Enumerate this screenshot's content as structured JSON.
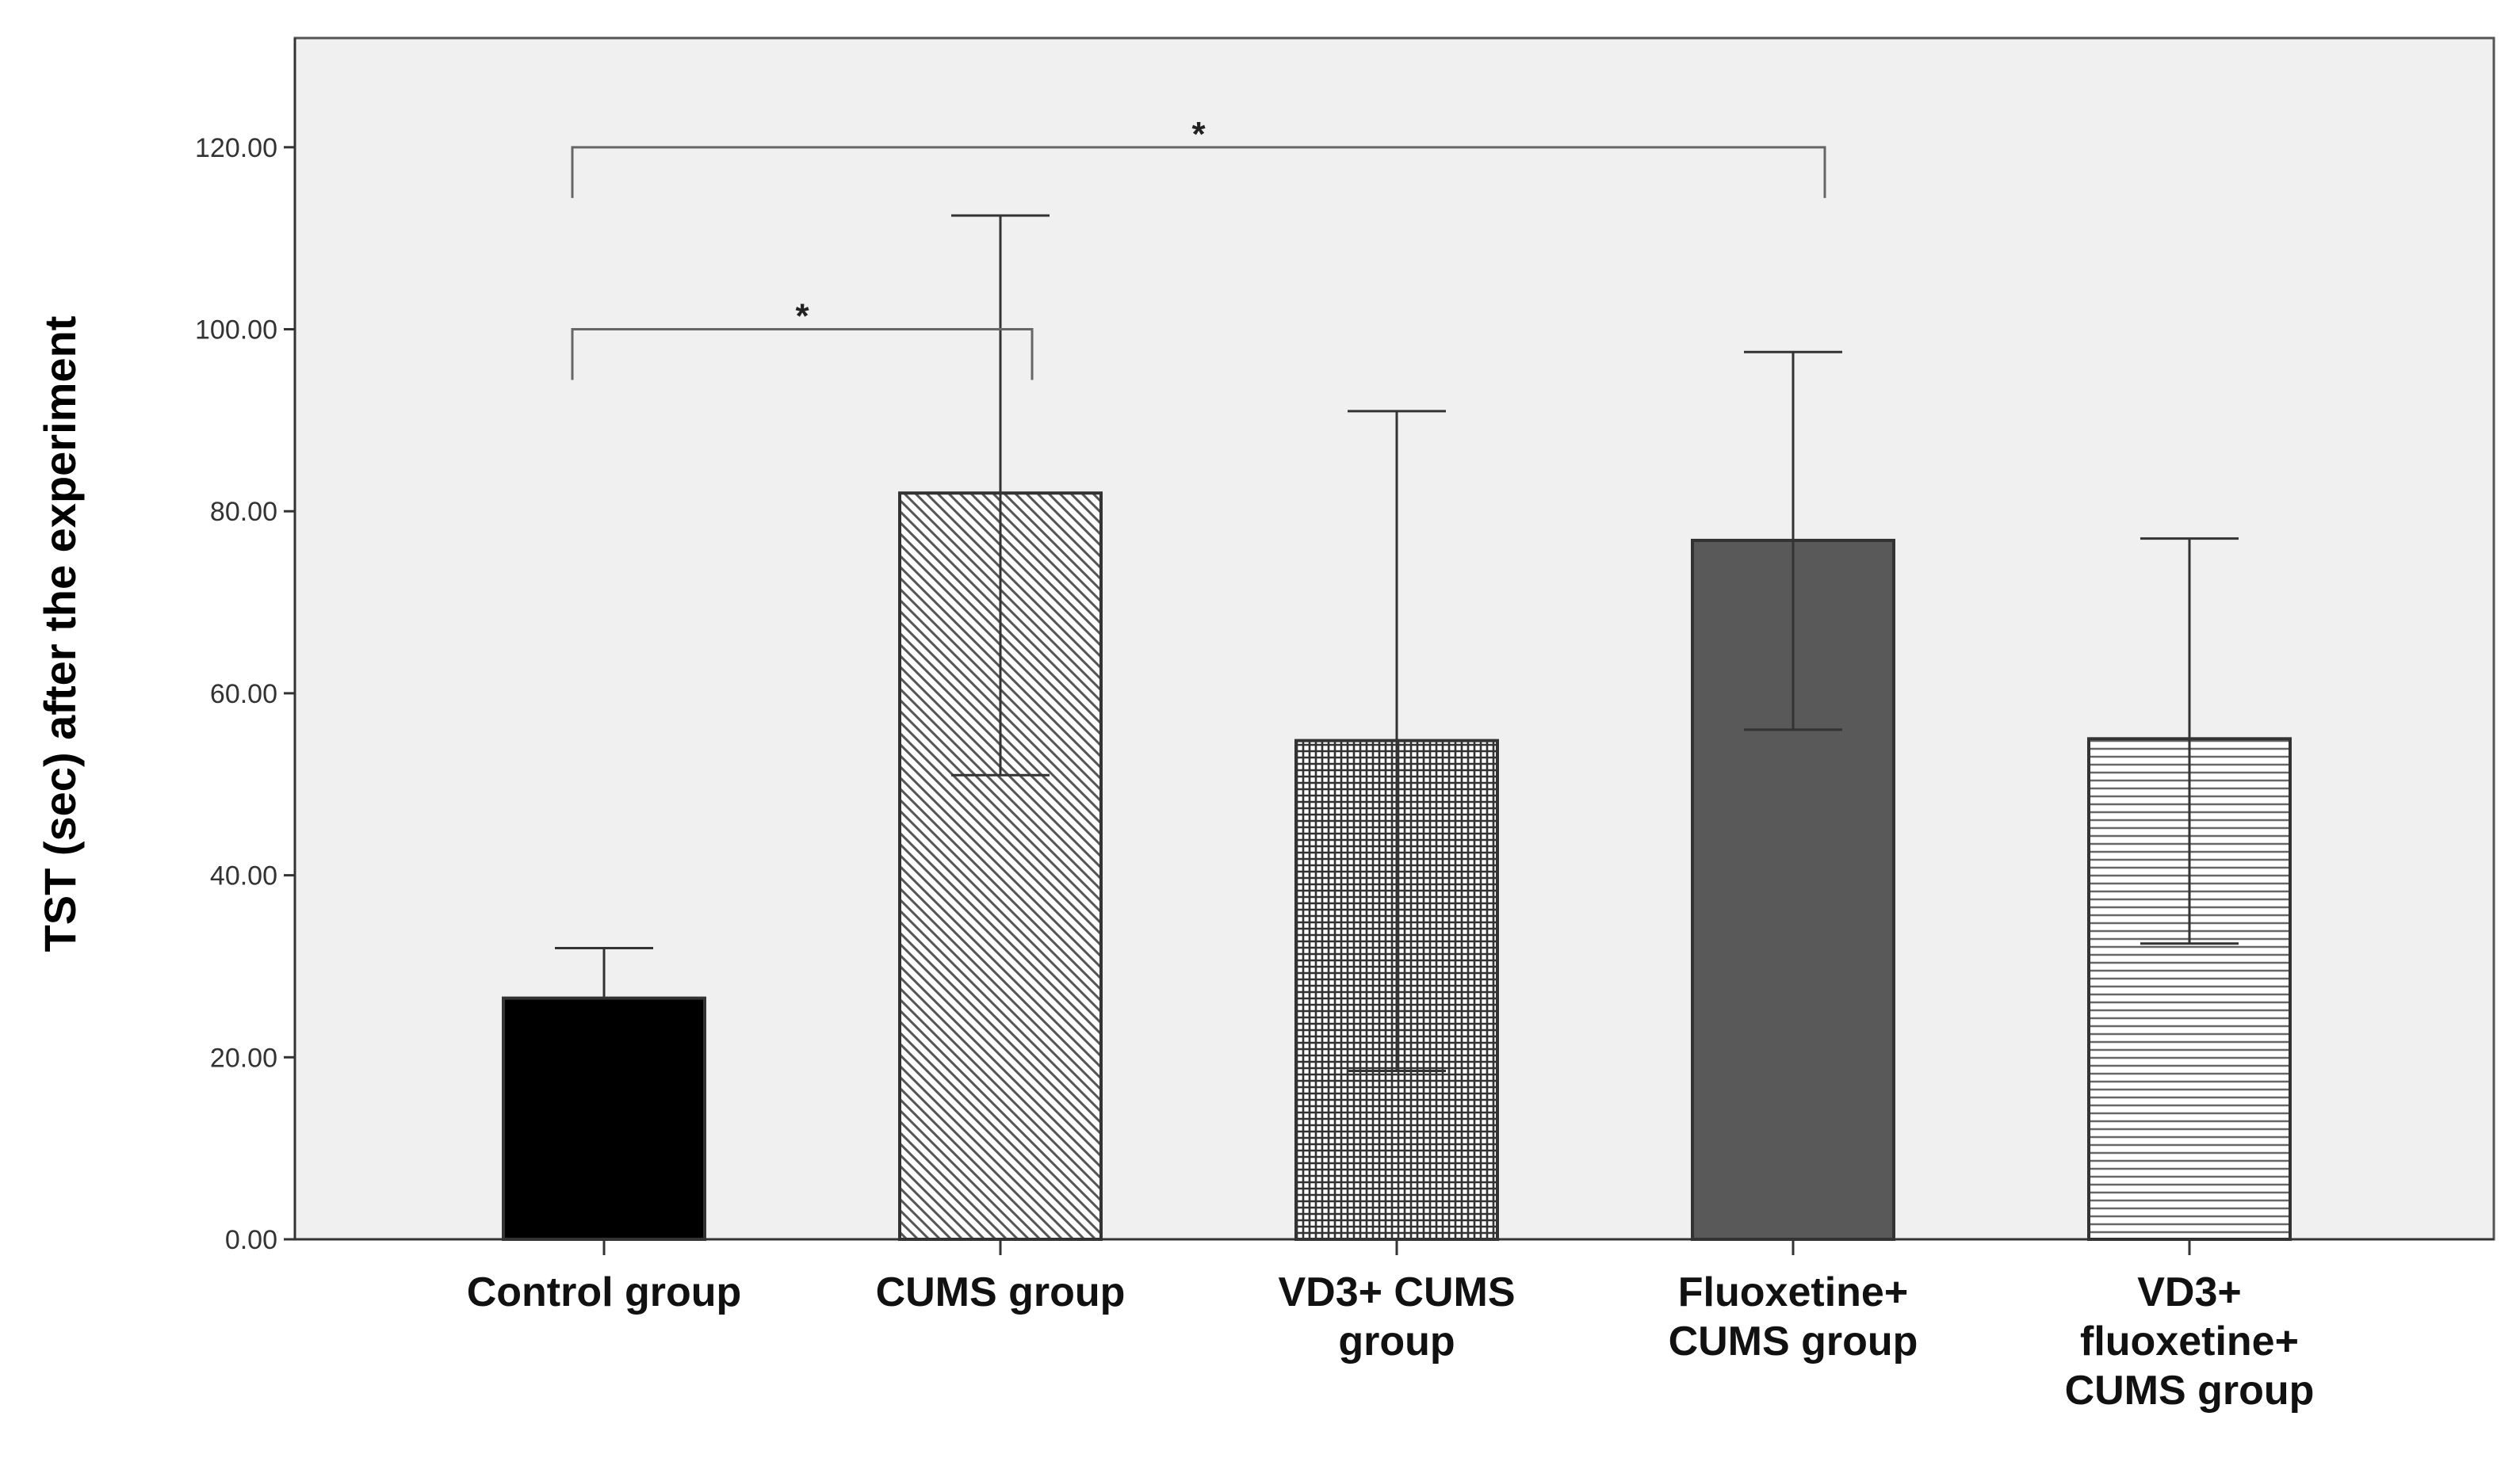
{
  "chart_data": {
    "type": "bar",
    "title": "",
    "xlabel": "",
    "ylabel": "TST (sec) after the experiment",
    "ylim": [
      0,
      132
    ],
    "yticks": [
      0,
      20,
      40,
      60,
      80,
      100,
      120
    ],
    "ytick_labels": [
      "0.00",
      "20.00",
      "40.00",
      "60.00",
      "80.00",
      "100.00",
      "120.00"
    ],
    "grid": false,
    "categories": [
      [
        "Control group"
      ],
      [
        "CUMS group"
      ],
      [
        "VD3+ CUMS",
        "group"
      ],
      [
        "Fluoxetine+",
        "CUMS group"
      ],
      [
        "VD3+",
        "fluoxetine+",
        "CUMS group"
      ]
    ],
    "values": [
      26.5,
      82.0,
      54.8,
      76.8,
      55.0
    ],
    "error_lower": [
      26.5,
      51.0,
      18.5,
      56.0,
      32.5
    ],
    "error_upper": [
      32.0,
      112.5,
      91.0,
      97.5,
      77.0
    ],
    "fills": [
      "solid-black",
      "diagonal-hatch",
      "crosshatch",
      "solid-dark-gray",
      "horizontal-lines"
    ],
    "colors": {
      "plot_background": "#f0f0f0",
      "bar_black": "#000000",
      "bar_dark": "#595959",
      "hatch": "#555555",
      "outline": "#333333",
      "error_bar": "#333333",
      "bracket": "#666666"
    },
    "annotations": [
      {
        "type": "significance",
        "from": 0,
        "to": 1,
        "y": 100,
        "label": "*"
      },
      {
        "type": "significance",
        "from": 0,
        "to": 3,
        "y": 120,
        "label": "*"
      }
    ]
  }
}
